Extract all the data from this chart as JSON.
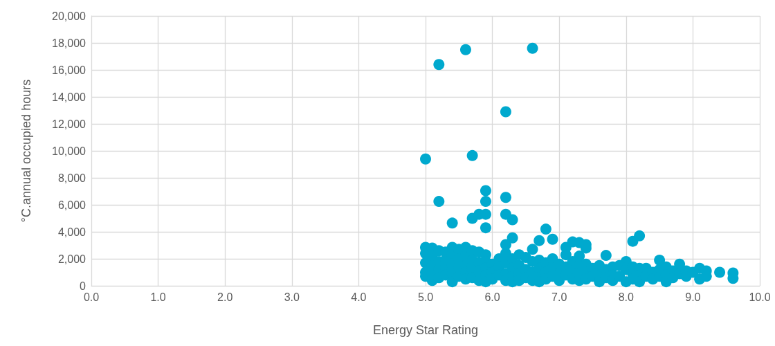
{
  "chart_data": {
    "type": "scatter",
    "xlabel": "Energy Star Rating",
    "ylabel": "°C.annual occupied hours",
    "xlim": [
      0,
      10
    ],
    "ylim": [
      0,
      20000
    ],
    "xticks": [
      {
        "value": 0,
        "label": "0.0"
      },
      {
        "value": 1,
        "label": "1.0"
      },
      {
        "value": 2,
        "label": "2.0"
      },
      {
        "value": 3,
        "label": "3.0"
      },
      {
        "value": 4,
        "label": "4.0"
      },
      {
        "value": 5,
        "label": "5.0"
      },
      {
        "value": 6,
        "label": "6.0"
      },
      {
        "value": 7,
        "label": "7.0"
      },
      {
        "value": 8,
        "label": "8.0"
      },
      {
        "value": 9,
        "label": "9.0"
      },
      {
        "value": 10,
        "label": "10.0"
      }
    ],
    "yticks": [
      0,
      {
        "value": 2000,
        "label": "2,000"
      },
      {
        "value": 4000,
        "label": "4,000"
      },
      {
        "value": 6000,
        "label": "6,000"
      },
      {
        "value": 8000,
        "label": "8,000"
      },
      {
        "value": 10000,
        "label": "10,000"
      },
      {
        "value": 12000,
        "label": "12,000"
      },
      {
        "value": 14000,
        "label": "14,000"
      },
      {
        "value": 16000,
        "label": "16,000"
      },
      {
        "value": 18000,
        "label": "18,000"
      },
      {
        "value": 20000,
        "label": "20,000"
      }
    ],
    "grid": true,
    "marker": "circle",
    "series": [
      {
        "color": "#00a9ce",
        "x": [
          5.0,
          5.2,
          5.2,
          5.4,
          5.6,
          5.7,
          5.7,
          5.8,
          5.9,
          5.9,
          5.9,
          5.9,
          6.2,
          6.2,
          6.2,
          6.3,
          6.6,
          6.3,
          6.6,
          6.7,
          6.8,
          6.9,
          7.1,
          7.2,
          7.3,
          7.4,
          7.3,
          7.7,
          8.1,
          8.2,
          8.0,
          8.5,
          8.8,
          5.0,
          5.0,
          5.0,
          5.0,
          5.0,
          5.1,
          5.1,
          5.1,
          5.1,
          5.1,
          5.2,
          5.2,
          5.2,
          5.2,
          5.3,
          5.3,
          5.3,
          5.3,
          5.4,
          5.4,
          5.4,
          5.4,
          5.4,
          5.5,
          5.5,
          5.5,
          5.5,
          5.6,
          5.6,
          5.6,
          5.6,
          5.6,
          5.7,
          5.7,
          5.7,
          5.7,
          5.8,
          5.8,
          5.8,
          5.8,
          5.9,
          5.9,
          5.9,
          5.9,
          5.9,
          6.0,
          6.0,
          6.0,
          6.1,
          6.1,
          6.1,
          6.2,
          6.2,
          6.2,
          6.2,
          6.2,
          6.3,
          6.3,
          6.3,
          6.3,
          6.4,
          6.4,
          6.4,
          6.4,
          6.5,
          6.5,
          6.5,
          6.6,
          6.6,
          6.6,
          6.7,
          6.7,
          6.7,
          6.7,
          6.8,
          6.8,
          6.8,
          6.9,
          6.9,
          6.9,
          7.0,
          7.0,
          7.0,
          7.1,
          7.1,
          7.1,
          7.2,
          7.2,
          7.2,
          7.3,
          7.3,
          7.3,
          7.4,
          7.4,
          7.4,
          7.4,
          7.5,
          7.5,
          7.6,
          7.6,
          7.6,
          7.7,
          7.7,
          7.8,
          7.8,
          7.8,
          7.9,
          7.9,
          8.0,
          8.0,
          8.1,
          8.1,
          8.1,
          8.2,
          8.2,
          8.2,
          8.3,
          8.3,
          8.4,
          8.4,
          8.5,
          8.5,
          8.6,
          8.6,
          8.6,
          8.7,
          8.7,
          8.8,
          8.9,
          8.9,
          9.0,
          9.1,
          9.1,
          9.2,
          9.2,
          9.4,
          9.6,
          9.6
        ],
        "values": [
          9400,
          16400,
          6250,
          4650,
          17500,
          9650,
          5000,
          5300,
          7050,
          6250,
          5300,
          4300,
          12900,
          6550,
          5300,
          4900,
          17600,
          3550,
          2700,
          3350,
          4200,
          3450,
          2850,
          3250,
          3200,
          3050,
          2200,
          2250,
          3300,
          3700,
          1800,
          1900,
          1600,
          2850,
          2400,
          1700,
          1000,
          700,
          2800,
          2200,
          1500,
          900,
          400,
          2600,
          1800,
          1200,
          600,
          2500,
          1900,
          1300,
          800,
          2850,
          2300,
          1600,
          900,
          300,
          2700,
          2000,
          1400,
          700,
          2850,
          2200,
          1500,
          1000,
          500,
          2600,
          1900,
          1200,
          600,
          2500,
          1700,
          1100,
          400,
          2300,
          1800,
          1300,
          800,
          300,
          1600,
          1000,
          500,
          2000,
          1400,
          800,
          3050,
          2400,
          1700,
          900,
          400,
          2000,
          1300,
          700,
          300,
          2300,
          1500,
          900,
          400,
          2100,
          1200,
          600,
          1800,
          1000,
          400,
          1900,
          1300,
          600,
          300,
          1700,
          1000,
          500,
          2000,
          1300,
          700,
          1600,
          900,
          400,
          2300,
          1400,
          800,
          1800,
          1100,
          500,
          1500,
          900,
          400,
          2800,
          1600,
          1000,
          500,
          1300,
          700,
          1500,
          800,
          300,
          1200,
          600,
          1400,
          800,
          400,
          1500,
          700,
          1200,
          300,
          1400,
          900,
          500,
          1300,
          800,
          300,
          1300,
          700,
          1000,
          500,
          1200,
          700,
          1400,
          800,
          300,
          1100,
          600,
          900,
          1100,
          700,
          1000,
          1300,
          500,
          1100,
          700,
          1000,
          950,
          550
        ]
      }
    ]
  }
}
